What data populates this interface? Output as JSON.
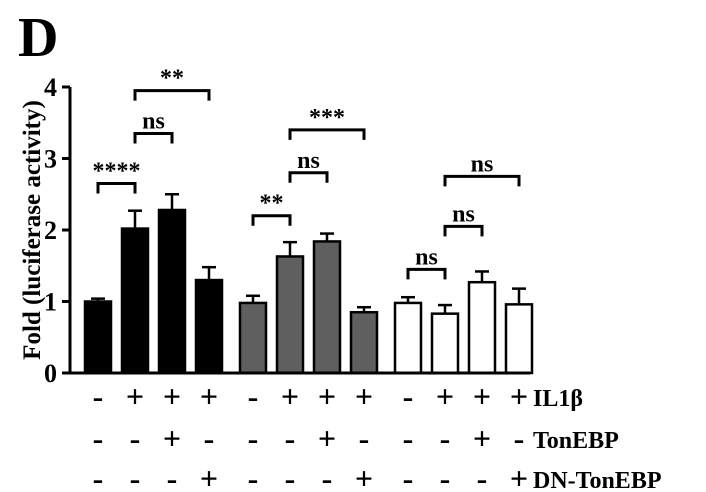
{
  "panel_label": "D",
  "chart_data": {
    "type": "bar",
    "ylabel": "Fold (luciferase activity)",
    "ylim": [
      0,
      4
    ],
    "yticks": [
      "0",
      "1",
      "2",
      "3",
      "4"
    ],
    "groups": [
      {
        "fill": "#000000",
        "values": [
          1.0,
          2.02,
          2.28,
          1.3
        ],
        "errors": [
          0.04,
          0.25,
          0.22,
          0.18
        ]
      },
      {
        "fill": "#5f5f5f",
        "values": [
          0.98,
          1.63,
          1.84,
          0.85
        ],
        "errors": [
          0.1,
          0.2,
          0.11,
          0.07
        ]
      },
      {
        "fill": "#ffffff",
        "values": [
          0.98,
          0.83,
          1.27,
          0.96
        ],
        "errors": [
          0.08,
          0.12,
          0.15,
          0.22
        ]
      }
    ],
    "conditions": [
      {
        "label": "IL1β",
        "signs": [
          "-",
          "+",
          "+",
          "+",
          "-",
          "+",
          "+",
          "+",
          "-",
          "+",
          "+",
          "+"
        ]
      },
      {
        "label": "TonEBP",
        "signs": [
          "-",
          "-",
          "+",
          "-",
          "-",
          "-",
          "+",
          "-",
          "-",
          "-",
          "+",
          "-"
        ]
      },
      {
        "label": "DN-TonEBP",
        "signs": [
          "-",
          "-",
          "-",
          "+",
          "-",
          "-",
          "-",
          "+",
          "-",
          "-",
          "-",
          "+"
        ]
      }
    ],
    "significance": [
      {
        "from": 0,
        "to": 1,
        "label": "****",
        "y": 2.65
      },
      {
        "from": 1,
        "to": 2,
        "label": "ns",
        "y": 3.35
      },
      {
        "from": 1,
        "to": 3,
        "label": "**",
        "y": 3.95
      },
      {
        "from": 4,
        "to": 5,
        "label": "**",
        "y": 2.2
      },
      {
        "from": 5,
        "to": 6,
        "label": "ns",
        "y": 2.8
      },
      {
        "from": 5,
        "to": 7,
        "label": "***",
        "y": 3.4
      },
      {
        "from": 8,
        "to": 9,
        "label": "ns",
        "y": 1.45
      },
      {
        "from": 9,
        "to": 10,
        "label": "ns",
        "y": 2.05
      },
      {
        "from": 9,
        "to": 11,
        "label": "ns",
        "y": 2.75
      }
    ]
  }
}
